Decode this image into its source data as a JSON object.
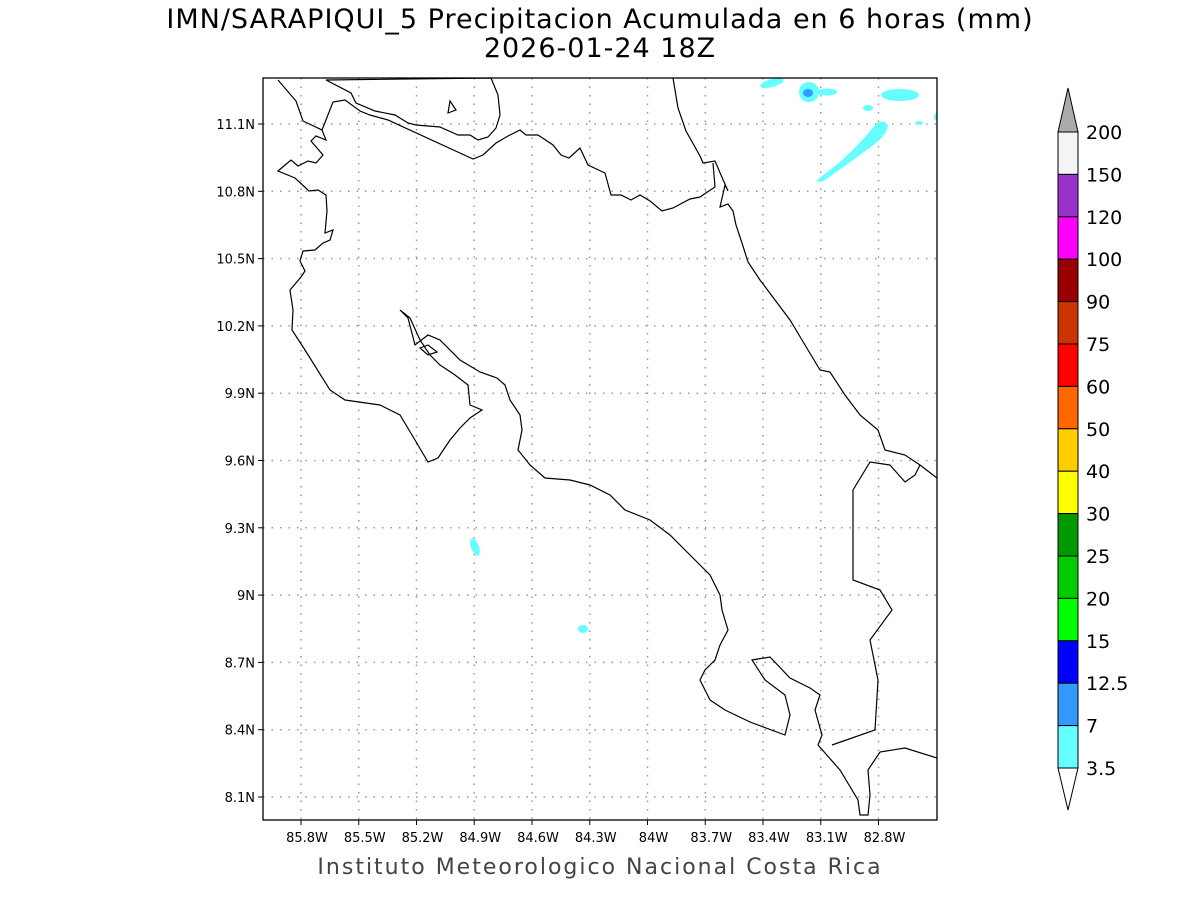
{
  "title": {
    "line1": "IMN/SARAPIQUI_5 Precipitacion Acumulada en 6 horas (mm)",
    "line2": "2026-01-24 18Z"
  },
  "credit": "Instituto Meteorologico Nacional Costa Rica",
  "map": {
    "region": "Costa Rica",
    "lon_ticks": [
      "85.8W",
      "85.5W",
      "85.2W",
      "84.9W",
      "84.6W",
      "84.3W",
      "84W",
      "83.7W",
      "83.4W",
      "83.1W",
      "82.8W"
    ],
    "lat_ticks": [
      "11.1N",
      "10.8N",
      "10.5N",
      "10.2N",
      "9.9N",
      "9.6N",
      "9.3N",
      "9N",
      "8.7N",
      "8.4N",
      "8.1N"
    ],
    "grid": true,
    "coastline_color": "#000000"
  },
  "colorbar": {
    "labels": [
      "200",
      "150",
      "120",
      "100",
      "90",
      "75",
      "60",
      "50",
      "40",
      "30",
      "25",
      "20",
      "15",
      "12.5",
      "7",
      "3.5"
    ],
    "colors": [
      "#f4f4f4",
      "#9933cc",
      "#ff00ff",
      "#990000",
      "#cc3300",
      "#ff0000",
      "#ff6600",
      "#ffcc00",
      "#ffff00",
      "#009900",
      "#00cc00",
      "#00ff00",
      "#0000ff",
      "#3399ff",
      "#66ffff"
    ],
    "over_color": "#aaaaaa",
    "under_color": "#ffffff"
  }
}
